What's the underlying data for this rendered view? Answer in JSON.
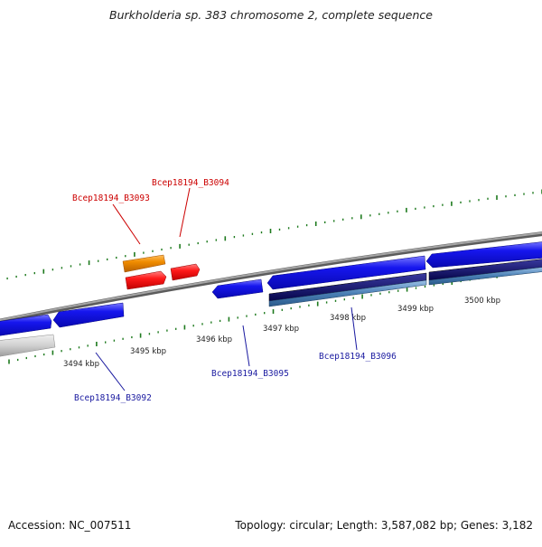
{
  "title": "Burkholderia sp. 383 chromosome 2, complete sequence",
  "footer": {
    "accession": "Accession: NC_007511",
    "summary": "Topology: circular; Length: 3,587,082 bp; Genes: 3,182"
  },
  "ticks": [
    {
      "label": "3494 kbp"
    },
    {
      "label": "3495 kbp"
    },
    {
      "label": "3496 kbp"
    },
    {
      "label": "3497 kbp"
    },
    {
      "label": "3498 kbp"
    },
    {
      "label": "3499 kbp"
    },
    {
      "label": "3500 kbp"
    }
  ],
  "gene_labels": [
    {
      "text": "Bcep18194_B3093",
      "color": "#cc0000"
    },
    {
      "text": "Bcep18194_B3094",
      "color": "#cc0000"
    },
    {
      "text": "Bcep18194_B3092",
      "color": "#1a1aa0"
    },
    {
      "text": "Bcep18194_B3095",
      "color": "#1a1aa0"
    },
    {
      "text": "Bcep18194_B3096",
      "color": "#1a1aa0"
    }
  ],
  "colors": {
    "backbone": "#8a8a8a",
    "gc_tick": "#1e7a1e",
    "forward_gene": "#1010e0",
    "rna_gene": "#ff1a1a",
    "orange_feature": "#f08c00",
    "dark_track": "#0a0a6e",
    "steel_track": "#4a7fb5",
    "pseudo_gene": "#c8c8c8"
  }
}
